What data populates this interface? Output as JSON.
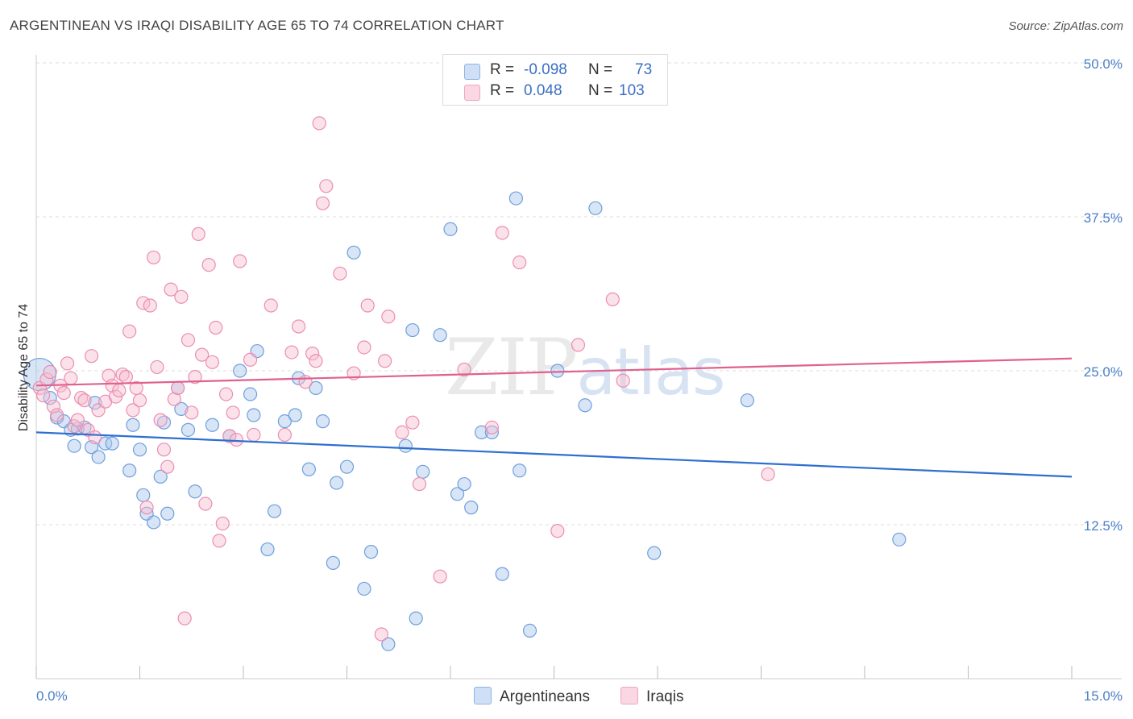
{
  "header": {
    "title": "ARGENTINEAN VS IRAQI DISABILITY AGE 65 TO 74 CORRELATION CHART",
    "source": "Source: ZipAtlas.com"
  },
  "watermark": {
    "zip": "ZIP",
    "atlas": "atlas"
  },
  "legend": {
    "rows": [
      {
        "r_label": "R =",
        "r_value": "-0.098",
        "n_label": "N =",
        "n_value": "73",
        "color": "#a9c6ec"
      },
      {
        "r_label": "R =",
        "r_value": "0.048",
        "n_label": "N =",
        "n_value": "103",
        "color": "#f6bed0"
      }
    ]
  },
  "bottom_legend": [
    {
      "label": "Argentineans",
      "color": "#a9c6ec"
    },
    {
      "label": "Iraqis",
      "color": "#f6bed0"
    }
  ],
  "chart_data": {
    "type": "scatter",
    "title": "ARGENTINEAN VS IRAQI DISABILITY AGE 65 TO 74 CORRELATION CHART",
    "xlabel": "",
    "ylabel": "Disability Age 65 to 74",
    "xlim": [
      0,
      15
    ],
    "ylim": [
      0,
      50
    ],
    "x_tick_labels": [
      "0.0%",
      "15.0%"
    ],
    "y_ticks": [
      12.5,
      25,
      37.5,
      50
    ],
    "y_tick_labels": [
      "12.5%",
      "25.0%",
      "37.5%",
      "50.0%"
    ],
    "grid": true,
    "series": [
      {
        "name": "Argentineans",
        "color": "#6f9fdc",
        "fill": "#a9c6ec",
        "trend": [
          [
            0,
            20.0
          ],
          [
            15,
            16.4
          ]
        ],
        "points": [
          [
            0.05,
            24.7
          ],
          [
            0.2,
            22.8
          ],
          [
            0.3,
            21.2
          ],
          [
            0.4,
            20.9
          ],
          [
            0.5,
            20.2
          ],
          [
            0.55,
            18.9
          ],
          [
            0.6,
            20.3
          ],
          [
            0.7,
            20.4
          ],
          [
            0.8,
            18.8
          ],
          [
            0.85,
            22.4
          ],
          [
            0.9,
            18.0
          ],
          [
            1.0,
            19.1
          ],
          [
            1.1,
            19.1
          ],
          [
            1.4,
            20.6
          ],
          [
            1.35,
            16.9
          ],
          [
            1.5,
            18.6
          ],
          [
            1.55,
            14.9
          ],
          [
            1.6,
            13.4
          ],
          [
            1.7,
            12.7
          ],
          [
            1.8,
            16.4
          ],
          [
            1.85,
            20.8
          ],
          [
            1.9,
            13.4
          ],
          [
            2.05,
            23.6
          ],
          [
            2.1,
            21.9
          ],
          [
            2.2,
            20.2
          ],
          [
            2.3,
            15.2
          ],
          [
            2.55,
            20.6
          ],
          [
            2.8,
            19.7
          ],
          [
            2.95,
            25.0
          ],
          [
            3.1,
            23.1
          ],
          [
            3.15,
            21.4
          ],
          [
            3.2,
            26.6
          ],
          [
            3.35,
            10.5
          ],
          [
            3.45,
            13.6
          ],
          [
            3.6,
            20.9
          ],
          [
            3.75,
            21.4
          ],
          [
            3.8,
            24.4
          ],
          [
            3.95,
            17.0
          ],
          [
            4.05,
            23.6
          ],
          [
            4.15,
            20.9
          ],
          [
            4.3,
            9.4
          ],
          [
            4.35,
            15.9
          ],
          [
            4.5,
            17.2
          ],
          [
            4.6,
            34.6
          ],
          [
            4.75,
            7.3
          ],
          [
            4.85,
            10.3
          ],
          [
            5.1,
            2.8
          ],
          [
            5.35,
            18.9
          ],
          [
            5.45,
            28.3
          ],
          [
            5.5,
            4.9
          ],
          [
            5.6,
            16.8
          ],
          [
            5.85,
            27.9
          ],
          [
            6.0,
            36.5
          ],
          [
            6.1,
            15.0
          ],
          [
            6.2,
            15.8
          ],
          [
            6.3,
            13.9
          ],
          [
            6.45,
            20.0
          ],
          [
            6.6,
            20.0
          ],
          [
            6.75,
            8.5
          ],
          [
            6.95,
            39.0
          ],
          [
            7.0,
            16.9
          ],
          [
            7.15,
            3.9
          ],
          [
            7.55,
            25.0
          ],
          [
            7.95,
            22.2
          ],
          [
            8.1,
            38.2
          ],
          [
            8.95,
            10.2
          ],
          [
            10.3,
            22.6
          ],
          [
            12.5,
            11.3
          ]
        ]
      },
      {
        "name": "Iraqis",
        "color": "#ec8db0",
        "fill": "#f6bed0",
        "trend": [
          [
            0,
            23.8
          ],
          [
            15,
            26.0
          ]
        ],
        "points": [
          [
            0.05,
            23.6
          ],
          [
            0.1,
            23.0
          ],
          [
            0.15,
            24.3
          ],
          [
            0.2,
            24.9
          ],
          [
            0.25,
            22.1
          ],
          [
            0.3,
            21.4
          ],
          [
            0.35,
            23.8
          ],
          [
            0.4,
            23.2
          ],
          [
            0.45,
            25.6
          ],
          [
            0.5,
            24.4
          ],
          [
            0.55,
            20.5
          ],
          [
            0.6,
            21.0
          ],
          [
            0.65,
            22.8
          ],
          [
            0.7,
            22.6
          ],
          [
            0.75,
            20.2
          ],
          [
            0.8,
            26.2
          ],
          [
            0.85,
            19.6
          ],
          [
            0.9,
            21.8
          ],
          [
            1.0,
            22.5
          ],
          [
            1.05,
            24.6
          ],
          [
            1.1,
            23.8
          ],
          [
            1.15,
            22.9
          ],
          [
            1.2,
            23.4
          ],
          [
            1.25,
            24.7
          ],
          [
            1.3,
            24.5
          ],
          [
            1.35,
            28.2
          ],
          [
            1.4,
            21.8
          ],
          [
            1.45,
            23.6
          ],
          [
            1.5,
            22.6
          ],
          [
            1.55,
            30.5
          ],
          [
            1.6,
            13.9
          ],
          [
            1.65,
            30.3
          ],
          [
            1.7,
            34.2
          ],
          [
            1.75,
            25.3
          ],
          [
            1.8,
            21.0
          ],
          [
            1.85,
            18.6
          ],
          [
            1.9,
            17.2
          ],
          [
            1.95,
            31.6
          ],
          [
            2.0,
            22.7
          ],
          [
            2.05,
            23.6
          ],
          [
            2.1,
            31.0
          ],
          [
            2.15,
            4.9
          ],
          [
            2.2,
            27.5
          ],
          [
            2.25,
            21.6
          ],
          [
            2.3,
            24.5
          ],
          [
            2.35,
            36.1
          ],
          [
            2.4,
            26.3
          ],
          [
            2.45,
            14.2
          ],
          [
            2.5,
            33.6
          ],
          [
            2.55,
            25.7
          ],
          [
            2.6,
            28.5
          ],
          [
            2.65,
            11.2
          ],
          [
            2.7,
            12.6
          ],
          [
            2.75,
            23.1
          ],
          [
            2.8,
            19.7
          ],
          [
            2.85,
            21.6
          ],
          [
            2.9,
            19.4
          ],
          [
            2.95,
            33.9
          ],
          [
            3.1,
            25.9
          ],
          [
            3.15,
            19.8
          ],
          [
            3.4,
            30.3
          ],
          [
            3.6,
            19.8
          ],
          [
            3.7,
            26.5
          ],
          [
            3.8,
            28.6
          ],
          [
            3.9,
            24.1
          ],
          [
            4.0,
            26.4
          ],
          [
            4.05,
            25.8
          ],
          [
            4.1,
            45.1
          ],
          [
            4.15,
            38.6
          ],
          [
            4.2,
            40.0
          ],
          [
            4.4,
            32.9
          ],
          [
            4.6,
            24.8
          ],
          [
            4.75,
            26.9
          ],
          [
            4.8,
            30.3
          ],
          [
            5.0,
            3.6
          ],
          [
            5.05,
            25.8
          ],
          [
            5.1,
            29.4
          ],
          [
            5.3,
            20.0
          ],
          [
            5.45,
            20.8
          ],
          [
            5.55,
            15.8
          ],
          [
            5.85,
            8.3
          ],
          [
            6.2,
            25.1
          ],
          [
            6.6,
            20.4
          ],
          [
            6.75,
            36.2
          ],
          [
            7.0,
            33.8
          ],
          [
            7.55,
            12.0
          ],
          [
            7.85,
            27.1
          ],
          [
            8.35,
            30.8
          ],
          [
            8.5,
            24.2
          ],
          [
            10.6,
            16.6
          ]
        ]
      }
    ]
  }
}
